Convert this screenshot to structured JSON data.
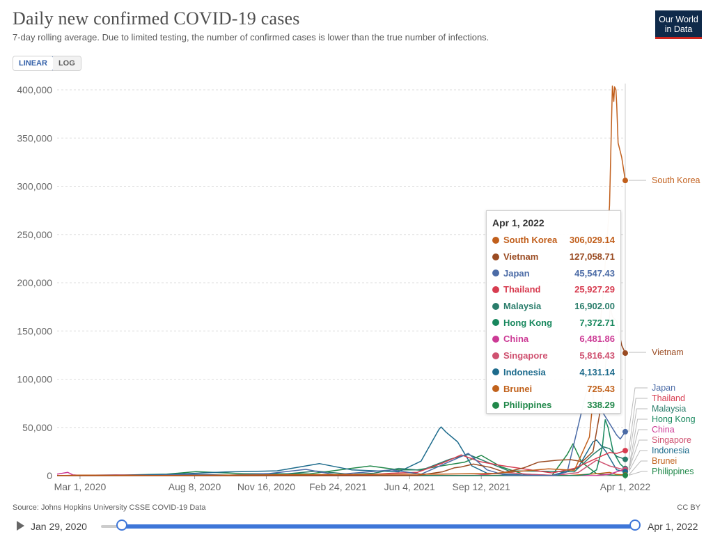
{
  "header": {
    "title": "Daily new confirmed COVID-19 cases",
    "subtitle": "7-day rolling average. Due to limited testing, the number of confirmed cases is lower than the true number of infections.",
    "logo_line1": "Our World",
    "logo_line2": "in Data"
  },
  "controls": {
    "linear_label": "LINEAR",
    "log_label": "LOG",
    "selected": "LINEAR"
  },
  "footer": {
    "source": "Source: Johns Hopkins University CSSE COVID-19 Data",
    "license": "CC BY"
  },
  "timeline": {
    "start_label": "Jan 29, 2020",
    "end_label": "Apr 1, 2022"
  },
  "tooltip": {
    "date": "Apr 1, 2022",
    "rows": [
      {
        "name": "South Korea",
        "value": "306,029.14"
      },
      {
        "name": "Vietnam",
        "value": "127,058.71"
      },
      {
        "name": "Japan",
        "value": "45,547.43"
      },
      {
        "name": "Thailand",
        "value": "25,927.29"
      },
      {
        "name": "Malaysia",
        "value": "16,902.00"
      },
      {
        "name": "Hong Kong",
        "value": "7,372.71"
      },
      {
        "name": "China",
        "value": "6,481.86"
      },
      {
        "name": "Singapore",
        "value": "5,816.43"
      },
      {
        "name": "Indonesia",
        "value": "4,131.14"
      },
      {
        "name": "Brunei",
        "value": "725.43"
      },
      {
        "name": "Philippines",
        "value": "338.29"
      }
    ]
  },
  "chart_data": {
    "type": "line",
    "title": "Daily new confirmed COVID-19 cases",
    "x_start": "2020-01-29",
    "x_end": "2022-04-01",
    "ylim": [
      0,
      400000
    ],
    "yticks": [
      0,
      50000,
      100000,
      150000,
      200000,
      250000,
      300000,
      350000,
      400000
    ],
    "ytick_labels": [
      "0",
      "50,000",
      "100,000",
      "150,000",
      "200,000",
      "250,000",
      "300,000",
      "350,000",
      "400,000"
    ],
    "xticks": [
      {
        "date": "2020-03-01",
        "label": "Mar 1, 2020"
      },
      {
        "date": "2020-08-08",
        "label": "Aug 8, 2020"
      },
      {
        "date": "2020-11-16",
        "label": "Nov 16, 2020"
      },
      {
        "date": "2021-02-24",
        "label": "Feb 24, 2021"
      },
      {
        "date": "2021-06-04",
        "label": "Jun 4, 2021"
      },
      {
        "date": "2021-09-12",
        "label": "Sep 12, 2021"
      },
      {
        "date": "2022-04-01",
        "label": "Apr 1, 2022"
      }
    ],
    "grid": "horizontal",
    "series": [
      {
        "name": "South Korea",
        "color": "#c15f1c",
        "final": 306029.14,
        "points": [
          [
            "2020-01-29",
            0
          ],
          [
            "2020-03-01",
            600
          ],
          [
            "2020-06-01",
            50
          ],
          [
            "2020-12-25",
            1000
          ],
          [
            "2021-07-25",
            1600
          ],
          [
            "2021-10-01",
            2300
          ],
          [
            "2021-12-15",
            7000
          ],
          [
            "2022-01-20",
            5500
          ],
          [
            "2022-02-10",
            40000
          ],
          [
            "2022-02-28",
            180000
          ],
          [
            "2022-03-10",
            280000
          ],
          [
            "2022-03-14",
            404000
          ],
          [
            "2022-03-16",
            388000
          ],
          [
            "2022-03-17",
            403000
          ],
          [
            "2022-03-19",
            400000
          ],
          [
            "2022-03-20",
            385000
          ],
          [
            "2022-03-22",
            345000
          ],
          [
            "2022-03-27",
            330000
          ],
          [
            "2022-04-01",
            306029
          ]
        ]
      },
      {
        "name": "Vietnam",
        "color": "#9a4b22",
        "final": 127058.71,
        "points": [
          [
            "2020-01-29",
            0
          ],
          [
            "2021-04-30",
            20
          ],
          [
            "2021-06-15",
            300
          ],
          [
            "2021-07-20",
            4000
          ],
          [
            "2021-08-05",
            8000
          ],
          [
            "2021-08-15",
            9000
          ],
          [
            "2021-09-01",
            12000
          ],
          [
            "2021-09-25",
            8500
          ],
          [
            "2021-10-15",
            3500
          ],
          [
            "2021-11-10",
            8000
          ],
          [
            "2021-12-01",
            14000
          ],
          [
            "2021-12-28",
            16000
          ],
          [
            "2022-01-15",
            16500
          ],
          [
            "2022-01-31",
            14500
          ],
          [
            "2022-02-15",
            25000
          ],
          [
            "2022-02-28",
            80000
          ],
          [
            "2022-03-05",
            118000
          ],
          [
            "2022-03-11",
            175000
          ],
          [
            "2022-03-14",
            165000
          ],
          [
            "2022-03-20",
            160000
          ],
          [
            "2022-03-27",
            135000
          ],
          [
            "2022-04-01",
            127058
          ]
        ]
      },
      {
        "name": "Japan",
        "color": "#4b6ba6",
        "final": 45547.43,
        "points": [
          [
            "2020-01-29",
            0
          ],
          [
            "2020-04-10",
            500
          ],
          [
            "2020-05-20",
            30
          ],
          [
            "2020-08-05",
            1400
          ],
          [
            "2020-09-25",
            500
          ],
          [
            "2020-11-20",
            2200
          ],
          [
            "2021-01-10",
            6500
          ],
          [
            "2021-02-20",
            1000
          ],
          [
            "2021-05-10",
            6000
          ],
          [
            "2021-06-20",
            1500
          ],
          [
            "2021-08-25",
            23000
          ],
          [
            "2021-09-20",
            6000
          ],
          [
            "2021-10-15",
            500
          ],
          [
            "2021-12-25",
            200
          ],
          [
            "2022-01-10",
            4000
          ],
          [
            "2022-02-05",
            85000
          ],
          [
            "2022-02-10",
            95000
          ],
          [
            "2022-02-20",
            70000
          ],
          [
            "2022-03-01",
            65000
          ],
          [
            "2022-03-20",
            42000
          ],
          [
            "2022-03-25",
            38000
          ],
          [
            "2022-04-01",
            45547
          ]
        ]
      },
      {
        "name": "Thailand",
        "color": "#d73c50",
        "final": 25927.29,
        "points": [
          [
            "2020-01-29",
            0
          ],
          [
            "2021-03-31",
            50
          ],
          [
            "2021-04-20",
            1500
          ],
          [
            "2021-05-10",
            2500
          ],
          [
            "2021-06-15",
            3500
          ],
          [
            "2021-07-20",
            13000
          ],
          [
            "2021-08-15",
            21500
          ],
          [
            "2021-09-10",
            14500
          ],
          [
            "2021-10-10",
            10500
          ],
          [
            "2021-11-10",
            7000
          ],
          [
            "2021-12-20",
            2800
          ],
          [
            "2022-01-20",
            7500
          ],
          [
            "2022-02-20",
            18000
          ],
          [
            "2022-03-10",
            24000
          ],
          [
            "2022-03-20",
            23000
          ],
          [
            "2022-04-01",
            25927
          ]
        ]
      },
      {
        "name": "Malaysia",
        "color": "#2a7d6b",
        "final": 16902.0,
        "points": [
          [
            "2020-01-29",
            0
          ],
          [
            "2020-09-15",
            30
          ],
          [
            "2020-10-10",
            700
          ],
          [
            "2020-12-10",
            1500
          ],
          [
            "2021-01-25",
            4700
          ],
          [
            "2021-03-15",
            1200
          ],
          [
            "2021-04-15",
            2500
          ],
          [
            "2021-05-20",
            7500
          ],
          [
            "2021-06-20",
            5500
          ],
          [
            "2021-07-30",
            17000
          ],
          [
            "2021-08-25",
            22000
          ],
          [
            "2021-09-20",
            14000
          ],
          [
            "2021-10-20",
            5000
          ],
          [
            "2021-12-10",
            4500
          ],
          [
            "2022-01-20",
            4000
          ],
          [
            "2022-02-15",
            22000
          ],
          [
            "2022-03-01",
            30000
          ],
          [
            "2022-03-10",
            28000
          ],
          [
            "2022-03-20",
            20000
          ],
          [
            "2022-04-01",
            16902
          ]
        ]
      },
      {
        "name": "Hong Kong",
        "color": "#17875d",
        "final": 7372.71,
        "points": [
          [
            "2020-01-29",
            0
          ],
          [
            "2022-01-25",
            100
          ],
          [
            "2022-02-10",
            1500
          ],
          [
            "2022-02-20",
            6000
          ],
          [
            "2022-02-28",
            30000
          ],
          [
            "2022-03-04",
            58000
          ],
          [
            "2022-03-08",
            50000
          ],
          [
            "2022-03-15",
            25000
          ],
          [
            "2022-03-25",
            12000
          ],
          [
            "2022-04-01",
            7372
          ]
        ]
      },
      {
        "name": "China",
        "color": "#cc3a95",
        "final": 6481.86,
        "points": [
          [
            "2020-01-29",
            1500
          ],
          [
            "2020-02-08",
            2800
          ],
          [
            "2020-02-13",
            3400
          ],
          [
            "2020-02-20",
            800
          ],
          [
            "2020-03-05",
            100
          ],
          [
            "2020-04-01",
            50
          ],
          [
            "2022-02-20",
            150
          ],
          [
            "2022-03-10",
            1500
          ],
          [
            "2022-03-20",
            4000
          ],
          [
            "2022-04-01",
            6481
          ]
        ]
      },
      {
        "name": "Singapore",
        "color": "#cf5170",
        "final": 5816.43,
        "points": [
          [
            "2020-01-29",
            0
          ],
          [
            "2020-04-20",
            800
          ],
          [
            "2020-06-15",
            200
          ],
          [
            "2020-09-01",
            10
          ],
          [
            "2021-09-01",
            100
          ],
          [
            "2021-10-15",
            3300
          ],
          [
            "2021-11-15",
            1500
          ],
          [
            "2021-12-25",
            300
          ],
          [
            "2022-01-25",
            3000
          ],
          [
            "2022-02-20",
            16000
          ],
          [
            "2022-03-10",
            10000
          ],
          [
            "2022-04-01",
            5816
          ]
        ]
      },
      {
        "name": "Indonesia",
        "color": "#1d6b8c",
        "final": 4131.14,
        "points": [
          [
            "2020-01-29",
            0
          ],
          [
            "2020-04-01",
            150
          ],
          [
            "2020-07-01",
            1200
          ],
          [
            "2020-09-20",
            3800
          ],
          [
            "2020-12-01",
            5000
          ],
          [
            "2021-01-29",
            12500
          ],
          [
            "2021-03-15",
            6000
          ],
          [
            "2021-05-20",
            4000
          ],
          [
            "2021-06-20",
            15000
          ],
          [
            "2021-07-15",
            48000
          ],
          [
            "2021-07-18",
            50500
          ],
          [
            "2021-07-25",
            45000
          ],
          [
            "2021-08-10",
            35000
          ],
          [
            "2021-08-30",
            10000
          ],
          [
            "2021-09-20",
            2500
          ],
          [
            "2021-11-15",
            400
          ],
          [
            "2021-12-20",
            200
          ],
          [
            "2022-01-25",
            8000
          ],
          [
            "2022-02-15",
            35000
          ],
          [
            "2022-02-20",
            37000
          ],
          [
            "2022-03-05",
            25000
          ],
          [
            "2022-03-20",
            6000
          ],
          [
            "2022-04-01",
            4131
          ]
        ]
      },
      {
        "name": "Brunei",
        "color": "#c1621c",
        "final": 725.43,
        "points": [
          [
            "2020-01-29",
            0
          ],
          [
            "2021-08-15",
            150
          ],
          [
            "2021-09-15",
            400
          ],
          [
            "2021-10-20",
            200
          ],
          [
            "2022-01-10",
            50
          ],
          [
            "2022-02-20",
            2000
          ],
          [
            "2022-03-10",
            3300
          ],
          [
            "2022-03-20",
            1200
          ],
          [
            "2022-04-01",
            725
          ]
        ]
      },
      {
        "name": "Philippines",
        "color": "#21884a",
        "final": 338.29,
        "points": [
          [
            "2020-01-29",
            0
          ],
          [
            "2020-04-01",
            300
          ],
          [
            "2020-06-30",
            1500
          ],
          [
            "2020-08-10",
            4200
          ],
          [
            "2020-10-15",
            2000
          ],
          [
            "2021-01-15",
            1800
          ],
          [
            "2021-03-25",
            8500
          ],
          [
            "2021-04-10",
            10000
          ],
          [
            "2021-05-20",
            6000
          ],
          [
            "2021-06-15",
            6000
          ],
          [
            "2021-08-20",
            14000
          ],
          [
            "2021-09-12",
            21000
          ],
          [
            "2021-10-10",
            9000
          ],
          [
            "2021-11-10",
            1600
          ],
          [
            "2021-12-20",
            300
          ],
          [
            "2022-01-10",
            22000
          ],
          [
            "2022-01-18",
            33000
          ],
          [
            "2022-01-30",
            14000
          ],
          [
            "2022-02-20",
            2000
          ],
          [
            "2022-03-15",
            600
          ],
          [
            "2022-04-01",
            338
          ]
        ]
      }
    ],
    "end_labels": [
      "South Korea",
      "Vietnam",
      "Japan",
      "Thailand",
      "Malaysia",
      "Hong Kong",
      "China",
      "Singapore",
      "Indonesia",
      "Brunei",
      "Philippines"
    ]
  }
}
